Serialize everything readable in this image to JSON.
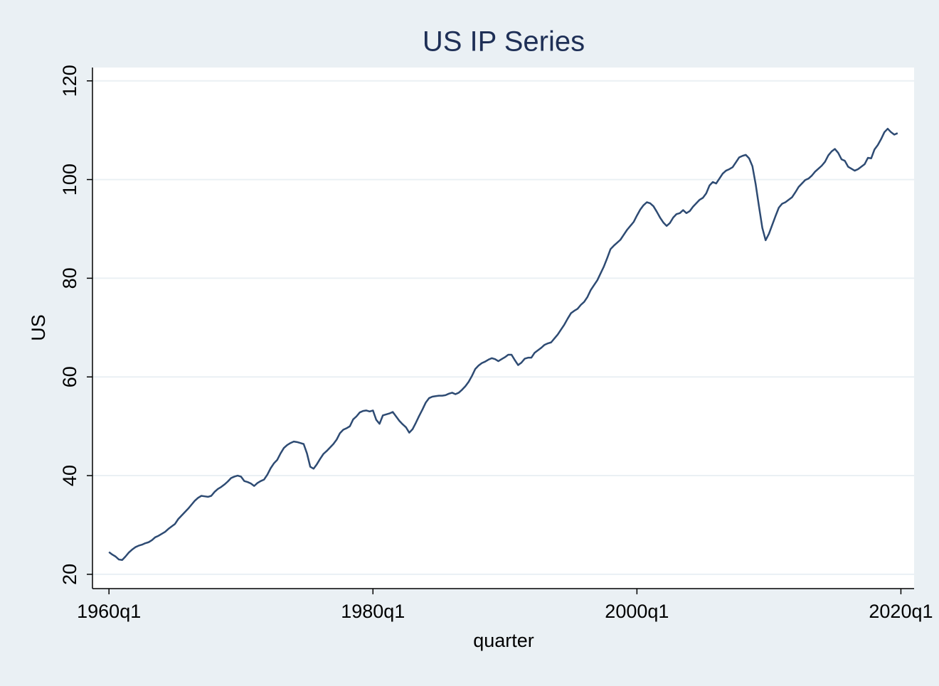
{
  "chart_data": {
    "type": "line",
    "title": "US IP Series",
    "x_label": "quarter",
    "y_label": "US",
    "color": "#2e4b73",
    "grid": true,
    "xlim": [
      "1958q4",
      "2021q1"
    ],
    "xticks": [
      "1960q1",
      "1980q1",
      "2000q1",
      "2020q1"
    ],
    "ylim": [
      17.1,
      122.7
    ],
    "yticks": [
      20,
      40,
      60,
      80,
      100,
      120
    ],
    "x": [
      "1960q1",
      "1960q2",
      "1960q3",
      "1960q4",
      "1961q1",
      "1961q2",
      "1961q3",
      "1961q4",
      "1962q1",
      "1962q2",
      "1962q3",
      "1962q4",
      "1963q1",
      "1963q2",
      "1963q3",
      "1963q4",
      "1964q1",
      "1964q2",
      "1964q3",
      "1964q4",
      "1965q1",
      "1965q2",
      "1965q3",
      "1965q4",
      "1966q1",
      "1966q2",
      "1966q3",
      "1966q4",
      "1967q1",
      "1967q2",
      "1967q3",
      "1967q4",
      "1968q1",
      "1968q2",
      "1968q3",
      "1968q4",
      "1969q1",
      "1969q2",
      "1969q3",
      "1969q4",
      "1970q1",
      "1970q2",
      "1970q3",
      "1970q4",
      "1971q1",
      "1971q2",
      "1971q3",
      "1971q4",
      "1972q1",
      "1972q2",
      "1972q3",
      "1972q4",
      "1973q1",
      "1973q2",
      "1973q3",
      "1973q4",
      "1974q1",
      "1974q2",
      "1974q3",
      "1974q4",
      "1975q1",
      "1975q2",
      "1975q3",
      "1975q4",
      "1976q1",
      "1976q2",
      "1976q3",
      "1976q4",
      "1977q1",
      "1977q2",
      "1977q3",
      "1977q4",
      "1978q1",
      "1978q2",
      "1978q3",
      "1978q4",
      "1979q1",
      "1979q2",
      "1979q3",
      "1979q4",
      "1980q1",
      "1980q2",
      "1980q3",
      "1980q4",
      "1981q1",
      "1981q2",
      "1981q3",
      "1981q4",
      "1982q1",
      "1982q2",
      "1982q3",
      "1982q4",
      "1983q1",
      "1983q2",
      "1983q3",
      "1983q4",
      "1984q1",
      "1984q2",
      "1984q3",
      "1984q4",
      "1985q1",
      "1985q2",
      "1985q3",
      "1985q4",
      "1986q1",
      "1986q2",
      "1986q3",
      "1986q4",
      "1987q1",
      "1987q2",
      "1987q3",
      "1987q4",
      "1988q1",
      "1988q2",
      "1988q3",
      "1988q4",
      "1989q1",
      "1989q2",
      "1989q3",
      "1989q4",
      "1990q1",
      "1990q2",
      "1990q3",
      "1990q4",
      "1991q1",
      "1991q2",
      "1991q3",
      "1991q4",
      "1992q1",
      "1992q2",
      "1992q3",
      "1992q4",
      "1993q1",
      "1993q2",
      "1993q3",
      "1993q4",
      "1994q1",
      "1994q2",
      "1994q3",
      "1994q4",
      "1995q1",
      "1995q2",
      "1995q3",
      "1995q4",
      "1996q1",
      "1996q2",
      "1996q3",
      "1996q4",
      "1997q1",
      "1997q2",
      "1997q3",
      "1997q4",
      "1998q1",
      "1998q2",
      "1998q3",
      "1998q4",
      "1999q1",
      "1999q2",
      "1999q3",
      "1999q4",
      "2000q1",
      "2000q2",
      "2000q3",
      "2000q4",
      "2001q1",
      "2001q2",
      "2001q3",
      "2001q4",
      "2002q1",
      "2002q2",
      "2002q3",
      "2002q4",
      "2003q1",
      "2003q2",
      "2003q3",
      "2003q4",
      "2004q1",
      "2004q2",
      "2004q3",
      "2004q4",
      "2005q1",
      "2005q2",
      "2005q3",
      "2005q4",
      "2006q1",
      "2006q2",
      "2006q3",
      "2006q4",
      "2007q1",
      "2007q2",
      "2007q3",
      "2007q4",
      "2008q1",
      "2008q2",
      "2008q3",
      "2008q4",
      "2009q1",
      "2009q2",
      "2009q3",
      "2009q4",
      "2010q1",
      "2010q2",
      "2010q3",
      "2010q4",
      "2011q1",
      "2011q2",
      "2011q3",
      "2011q4",
      "2012q1",
      "2012q2",
      "2012q3",
      "2012q4",
      "2013q1",
      "2013q2",
      "2013q3",
      "2013q4",
      "2014q1",
      "2014q2",
      "2014q3",
      "2014q4",
      "2015q1",
      "2015q2",
      "2015q3",
      "2015q4",
      "2016q1",
      "2016q2",
      "2016q3",
      "2016q4",
      "2017q1",
      "2017q2",
      "2017q3",
      "2017q4",
      "2018q1",
      "2018q2",
      "2018q3",
      "2018q4",
      "2019q1",
      "2019q2",
      "2019q3",
      "2019q4"
    ],
    "values": [
      24.5,
      24.0,
      23.6,
      23.0,
      22.9,
      23.6,
      24.4,
      25.0,
      25.5,
      25.8,
      26.0,
      26.3,
      26.5,
      26.9,
      27.5,
      27.8,
      28.2,
      28.6,
      29.2,
      29.7,
      30.2,
      31.2,
      31.9,
      32.6,
      33.3,
      34.1,
      34.9,
      35.5,
      35.9,
      35.8,
      35.7,
      35.9,
      36.7,
      37.3,
      37.7,
      38.2,
      38.8,
      39.5,
      39.8,
      40.0,
      39.8,
      38.9,
      38.7,
      38.4,
      37.9,
      38.5,
      38.9,
      39.2,
      40.2,
      41.5,
      42.5,
      43.2,
      44.5,
      45.6,
      46.2,
      46.6,
      46.9,
      46.8,
      46.6,
      46.4,
      44.5,
      41.8,
      41.4,
      42.3,
      43.4,
      44.4,
      45.0,
      45.7,
      46.4,
      47.3,
      48.6,
      49.3,
      49.6,
      50.0,
      51.4,
      52.0,
      52.8,
      53.1,
      53.2,
      53.0,
      53.2,
      51.3,
      50.5,
      52.2,
      52.4,
      52.6,
      52.9,
      52.0,
      51.1,
      50.4,
      49.8,
      48.7,
      49.4,
      50.7,
      52.1,
      53.4,
      54.8,
      55.7,
      56.0,
      56.1,
      56.2,
      56.2,
      56.3,
      56.6,
      56.8,
      56.5,
      56.8,
      57.4,
      58.1,
      59.0,
      60.2,
      61.6,
      62.3,
      62.8,
      63.1,
      63.5,
      63.8,
      63.6,
      63.2,
      63.6,
      64.0,
      64.5,
      64.5,
      63.4,
      62.4,
      62.9,
      63.7,
      63.9,
      63.9,
      64.9,
      65.4,
      65.9,
      66.5,
      66.8,
      67.0,
      67.8,
      68.6,
      69.6,
      70.6,
      71.8,
      72.9,
      73.4,
      73.8,
      74.6,
      75.2,
      76.2,
      77.6,
      78.6,
      79.6,
      81.0,
      82.4,
      84.1,
      85.9,
      86.6,
      87.2,
      87.8,
      88.8,
      89.8,
      90.6,
      91.4,
      92.7,
      93.9,
      94.8,
      95.4,
      95.2,
      94.6,
      93.5,
      92.3,
      91.3,
      90.6,
      91.2,
      92.3,
      93.0,
      93.2,
      93.8,
      93.2,
      93.6,
      94.5,
      95.2,
      95.9,
      96.3,
      97.2,
      98.8,
      99.5,
      99.2,
      100.2,
      101.2,
      101.8,
      102.1,
      102.5,
      103.5,
      104.5,
      104.8,
      105.0,
      104.3,
      102.7,
      99.0,
      94.5,
      90.2,
      87.7,
      89.0,
      90.8,
      92.6,
      94.3,
      95.1,
      95.4,
      95.9,
      96.4,
      97.4,
      98.5,
      99.2,
      99.9,
      100.2,
      100.8,
      101.6,
      102.2,
      102.8,
      103.6,
      104.9,
      105.7,
      106.2,
      105.4,
      104.1,
      103.8,
      102.6,
      102.2,
      101.8,
      102.1,
      102.6,
      103.1,
      104.4,
      104.3,
      106.1,
      107.0,
      108.2,
      109.6,
      110.3,
      109.6,
      109.1,
      109.4
    ]
  }
}
